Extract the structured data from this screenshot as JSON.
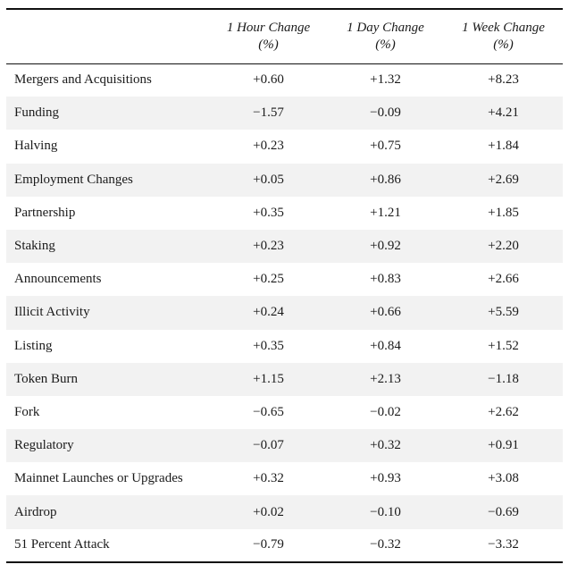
{
  "table": {
    "headers": [
      {
        "title": "",
        "unit": ""
      },
      {
        "title": "1 Hour Change",
        "unit": "(%)"
      },
      {
        "title": "1 Day Change",
        "unit": "(%)"
      },
      {
        "title": "1 Week Change",
        "unit": "(%)"
      }
    ],
    "rows": [
      {
        "label": "Mergers and Acquisitions",
        "hour": "+0.60",
        "day": "+1.32",
        "week": "+8.23"
      },
      {
        "label": "Funding",
        "hour": "−1.57",
        "day": "−0.09",
        "week": "+4.21"
      },
      {
        "label": "Halving",
        "hour": "+0.23",
        "day": "+0.75",
        "week": "+1.84"
      },
      {
        "label": "Employment Changes",
        "hour": "+0.05",
        "day": "+0.86",
        "week": "+2.69"
      },
      {
        "label": "Partnership",
        "hour": "+0.35",
        "day": "+1.21",
        "week": "+1.85"
      },
      {
        "label": "Staking",
        "hour": "+0.23",
        "day": "+0.92",
        "week": "+2.20"
      },
      {
        "label": "Announcements",
        "hour": "+0.25",
        "day": "+0.83",
        "week": "+2.66"
      },
      {
        "label": "Illicit Activity",
        "hour": "+0.24",
        "day": "+0.66",
        "week": "+5.59"
      },
      {
        "label": "Listing",
        "hour": "+0.35",
        "day": "+0.84",
        "week": "+1.52"
      },
      {
        "label": "Token Burn",
        "hour": "+1.15",
        "day": "+2.13",
        "week": "−1.18"
      },
      {
        "label": "Fork",
        "hour": "−0.65",
        "day": "−0.02",
        "week": "+2.62"
      },
      {
        "label": "Regulatory",
        "hour": "−0.07",
        "day": "+0.32",
        "week": "+0.91"
      },
      {
        "label": "Mainnet Launches or Upgrades",
        "hour": "+0.32",
        "day": "+0.93",
        "week": "+3.08"
      },
      {
        "label": "Airdrop",
        "hour": "+0.02",
        "day": "−0.10",
        "week": "−0.69"
      },
      {
        "label": "51 Percent Attack",
        "hour": "−0.79",
        "day": "−0.32",
        "week": "−3.32"
      }
    ]
  }
}
